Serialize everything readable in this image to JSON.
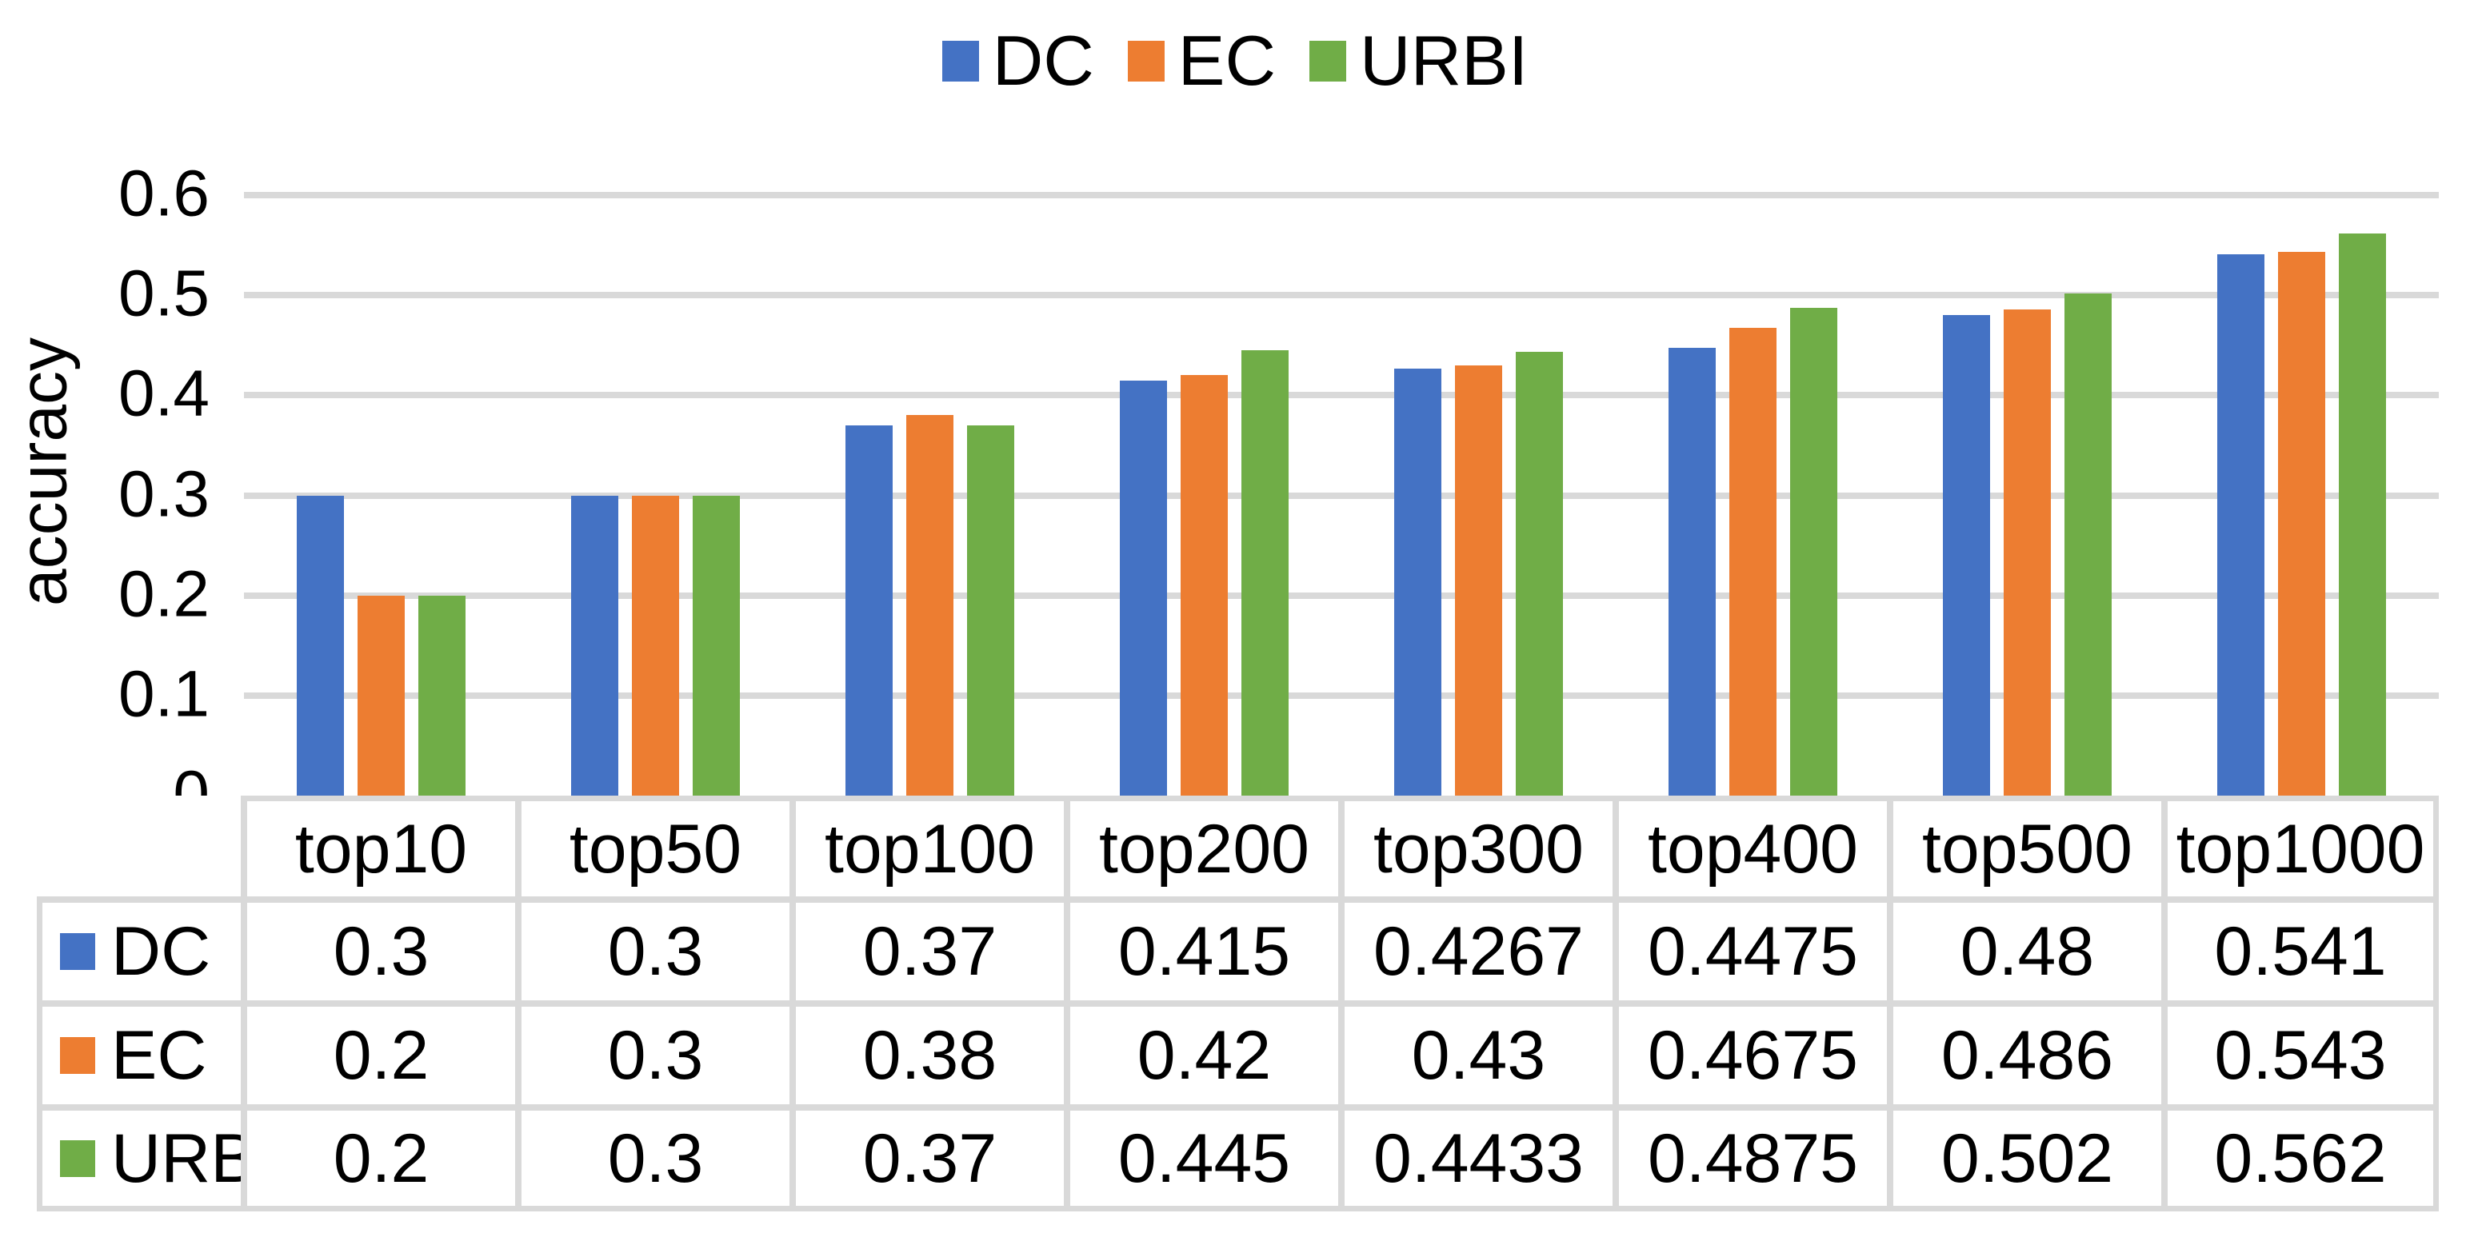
{
  "chart_data": {
    "type": "bar",
    "title": "",
    "categories": [
      "top10",
      "top50",
      "top100",
      "top200",
      "top300",
      "top400",
      "top500",
      "top1000"
    ],
    "series": [
      {
        "name": "DC",
        "color": "#4472C4",
        "values": [
          0.3,
          0.3,
          0.37,
          0.415,
          0.4267,
          0.4475,
          0.48,
          0.541
        ]
      },
      {
        "name": "EC",
        "color": "#ED7D31",
        "values": [
          0.2,
          0.3,
          0.38,
          0.42,
          0.43,
          0.4675,
          0.486,
          0.543
        ]
      },
      {
        "name": "URBI",
        "color": "#70AD47",
        "values": [
          0.2,
          0.3,
          0.37,
          0.445,
          0.4433,
          0.4875,
          0.502,
          0.562
        ]
      }
    ],
    "xlabel": "",
    "ylabel": "accuracy",
    "ylim": [
      0,
      0.6
    ],
    "yticks": [
      0,
      0.1,
      0.2,
      0.3,
      0.4,
      0.5,
      0.6
    ],
    "grid": true,
    "gridline_color": "#D9D9D9",
    "text_color": "#000000",
    "legend_position": "top-center",
    "data_table": true
  }
}
